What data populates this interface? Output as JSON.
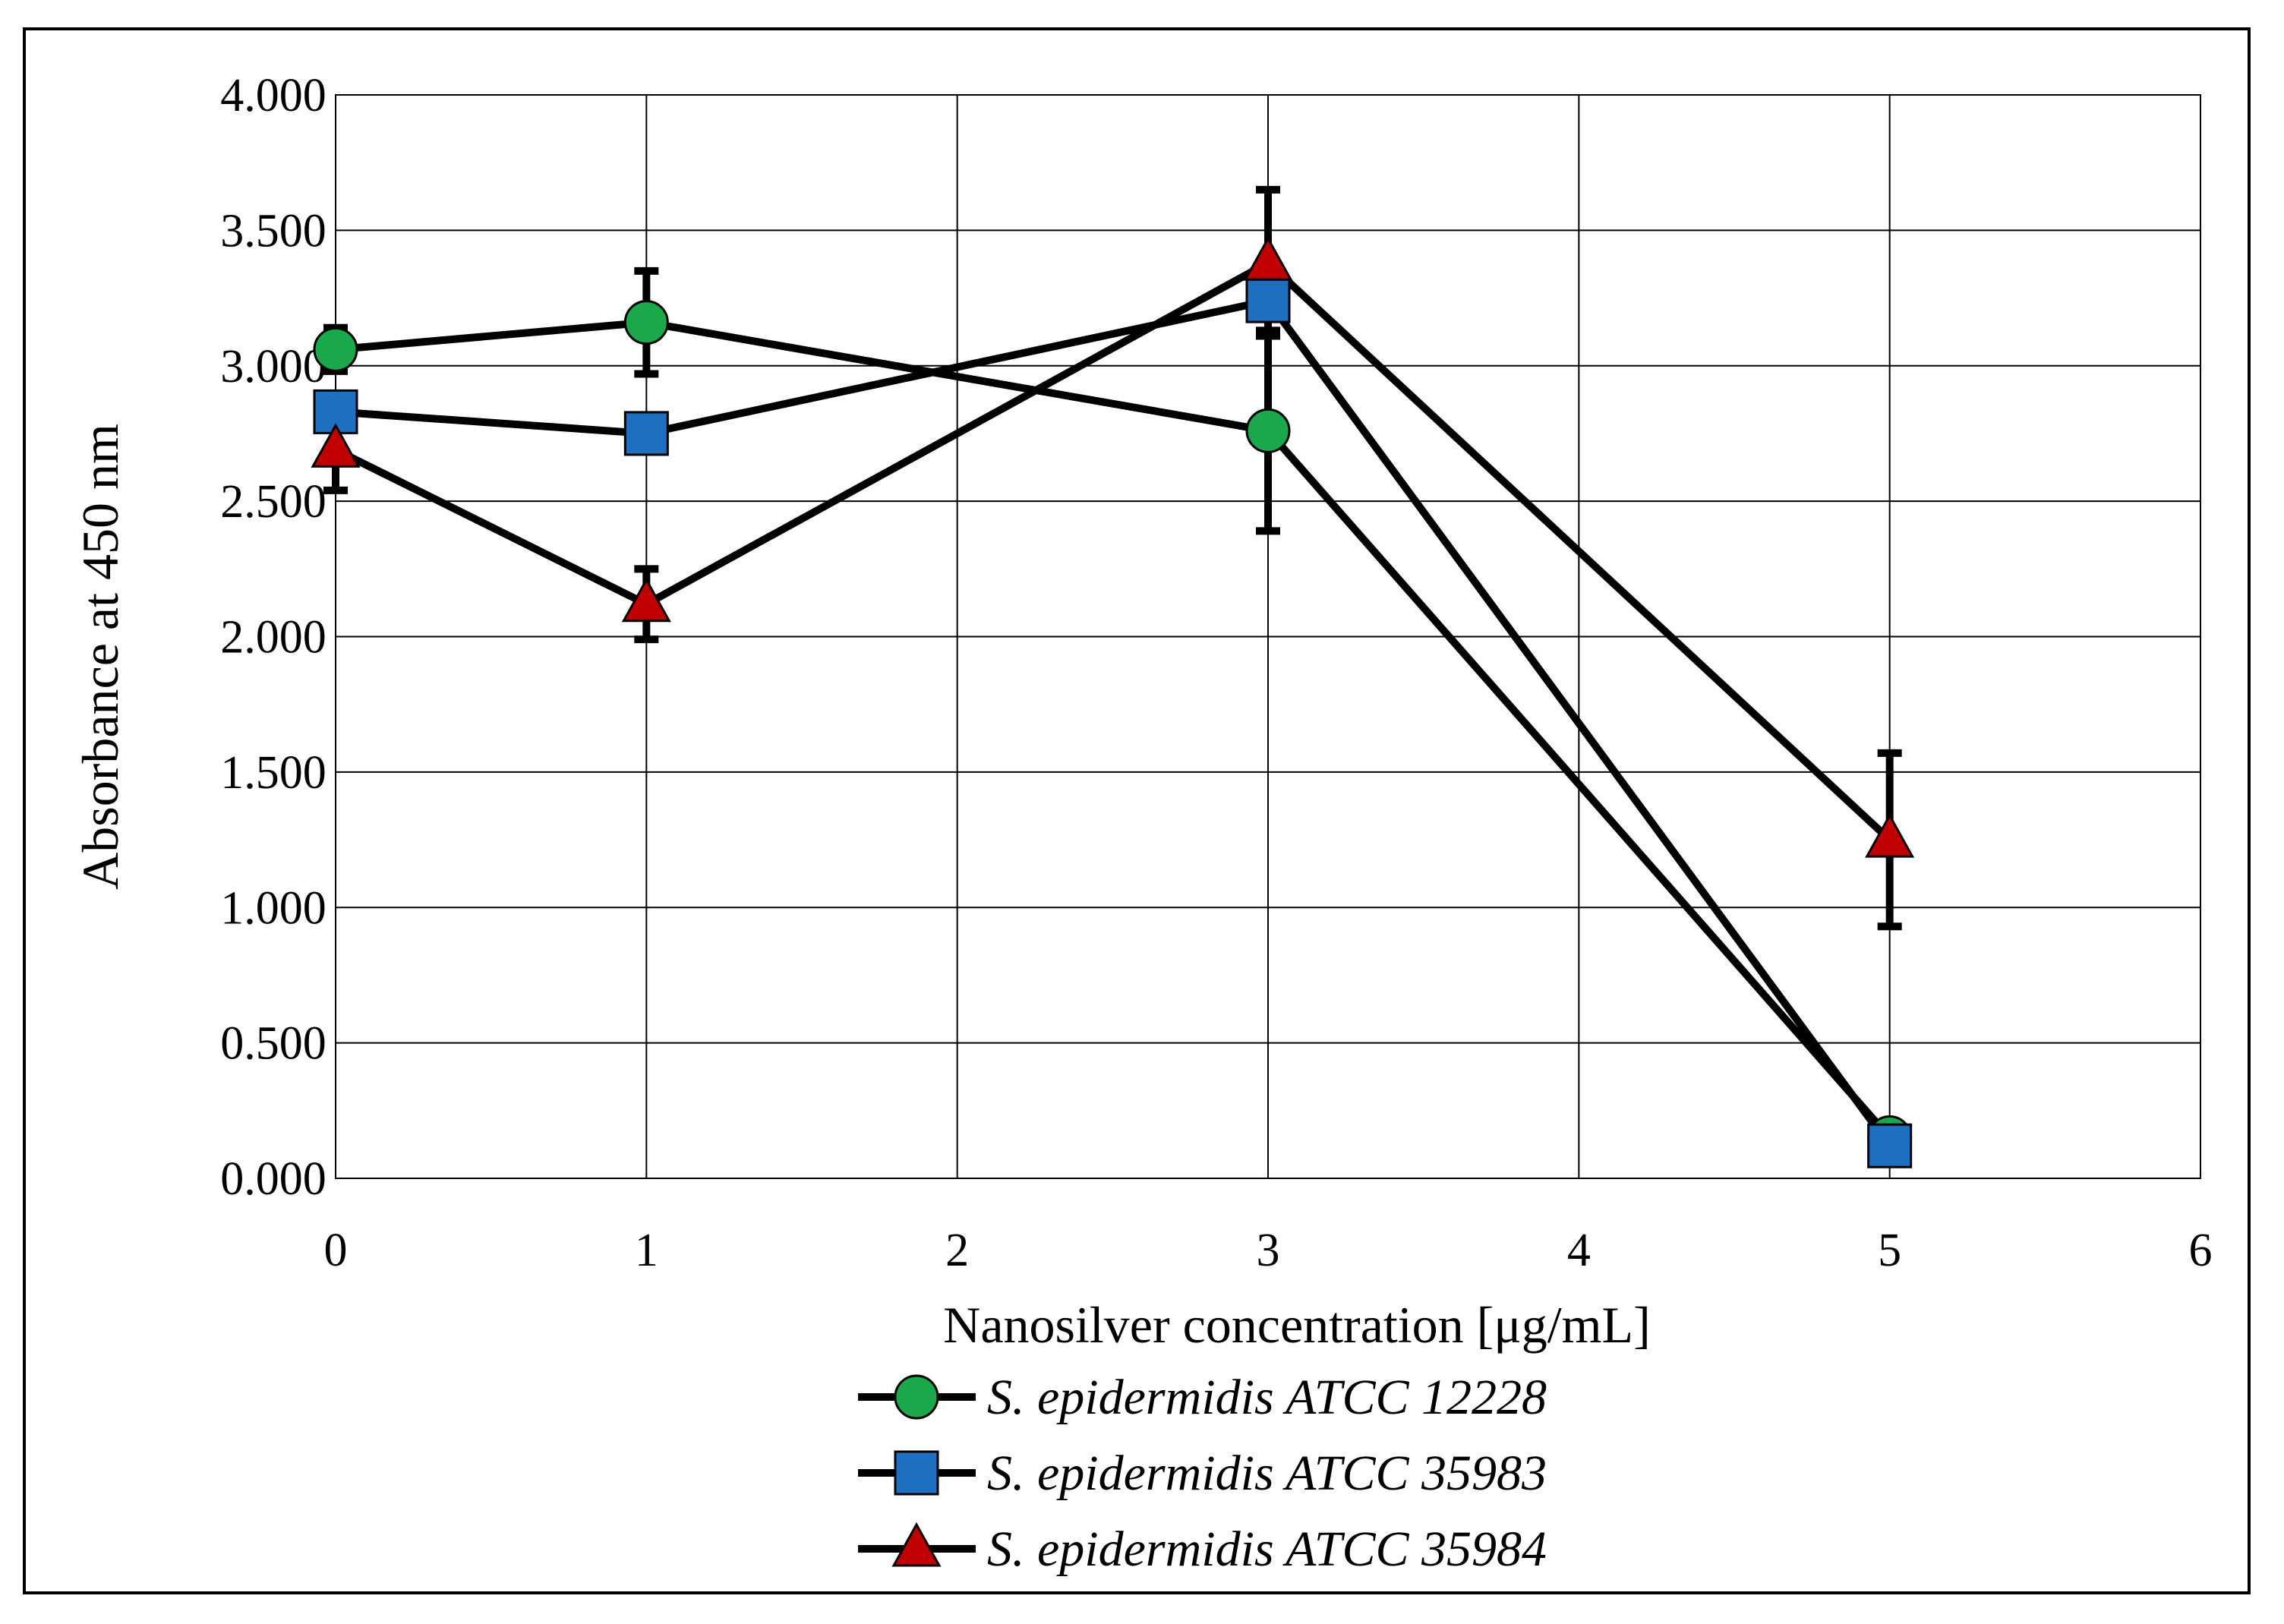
{
  "chart_data": {
    "type": "line",
    "title": "",
    "xlabel": "Nanosilver concentration [μg/mL]",
    "ylabel": "Absorbance at 450 nm",
    "xlim": [
      0,
      6
    ],
    "ylim": [
      0,
      4
    ],
    "xticks": [
      0,
      1,
      2,
      3,
      4,
      5,
      6
    ],
    "xtick_labels": [
      "0",
      "1",
      "2",
      "3",
      "4",
      "5",
      "6"
    ],
    "yticks": [
      0,
      0.5,
      1,
      1.5,
      2,
      2.5,
      3,
      3.5,
      4
    ],
    "ytick_labels": [
      "0.000",
      "0.500",
      "1.000",
      "1.500",
      "2.000",
      "2.500",
      "3.000",
      "3.500",
      "4.000"
    ],
    "grid": true,
    "legend_position": "bottom",
    "series": [
      {
        "name": "S. epidermidis ATCC 12228",
        "marker": "circle",
        "color": "#1aa84a",
        "x": [
          0,
          1,
          3,
          5
        ],
        "values": [
          3.06,
          3.16,
          2.76,
          0.15
        ],
        "errors": [
          0.08,
          0.19,
          0.37,
          0.02
        ]
      },
      {
        "name": "S. epidermidis ATCC 35983",
        "marker": "square",
        "color": "#1f6fc0",
        "x": [
          0,
          1,
          3,
          5
        ],
        "values": [
          2.83,
          2.75,
          3.24,
          0.12
        ],
        "errors": [
          0.05,
          0.05,
          0.13,
          0.02
        ]
      },
      {
        "name": "S. epidermidis ATCC 35984",
        "marker": "triangle",
        "color": "#c00000",
        "x": [
          0,
          1,
          3,
          5
        ],
        "values": [
          2.69,
          2.12,
          3.38,
          1.25
        ],
        "errors": [
          0.15,
          0.13,
          0.27,
          0.32
        ]
      }
    ]
  }
}
